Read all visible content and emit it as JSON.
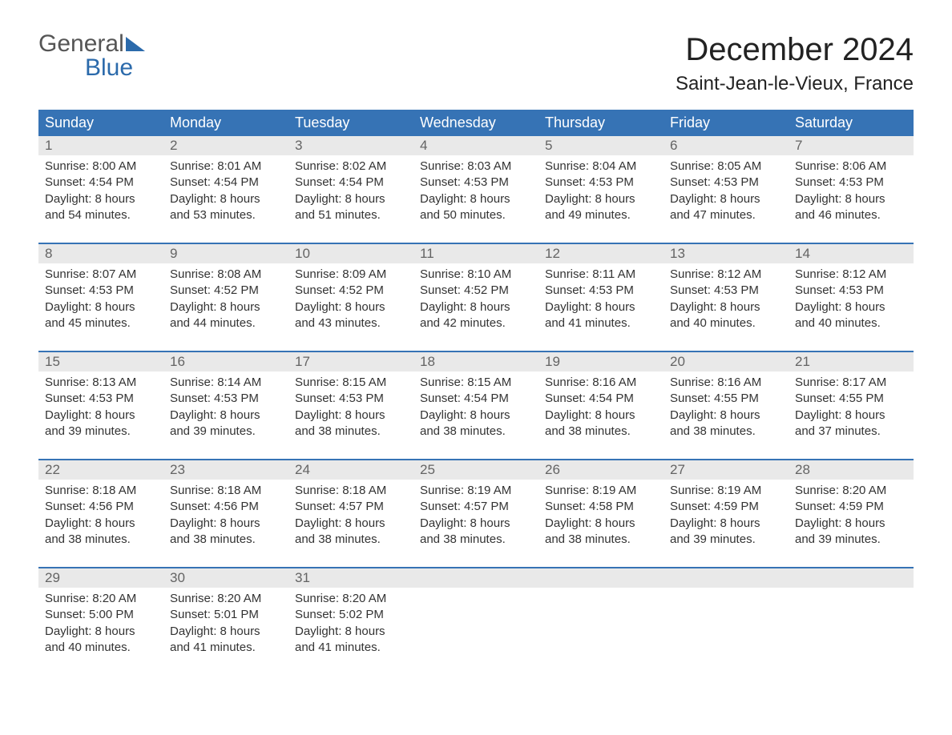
{
  "logo": {
    "text1": "General",
    "text2": "Blue"
  },
  "title": "December 2024",
  "location": "Saint-Jean-le-Vieux, France",
  "colors": {
    "header_bg": "#3673b5",
    "header_text": "#ffffff",
    "daynum_bg": "#e9e9e9",
    "daynum_text": "#646464",
    "body_text": "#333333",
    "week_divider": "#3673b5",
    "logo_gray": "#555555",
    "logo_blue": "#2b6aab"
  },
  "day_headers": [
    "Sunday",
    "Monday",
    "Tuesday",
    "Wednesday",
    "Thursday",
    "Friday",
    "Saturday"
  ],
  "weeks": [
    [
      {
        "d": "1",
        "sr": "8:00 AM",
        "ss": "4:54 PM",
        "dl": "8 hours and 54 minutes."
      },
      {
        "d": "2",
        "sr": "8:01 AM",
        "ss": "4:54 PM",
        "dl": "8 hours and 53 minutes."
      },
      {
        "d": "3",
        "sr": "8:02 AM",
        "ss": "4:54 PM",
        "dl": "8 hours and 51 minutes."
      },
      {
        "d": "4",
        "sr": "8:03 AM",
        "ss": "4:53 PM",
        "dl": "8 hours and 50 minutes."
      },
      {
        "d": "5",
        "sr": "8:04 AM",
        "ss": "4:53 PM",
        "dl": "8 hours and 49 minutes."
      },
      {
        "d": "6",
        "sr": "8:05 AM",
        "ss": "4:53 PM",
        "dl": "8 hours and 47 minutes."
      },
      {
        "d": "7",
        "sr": "8:06 AM",
        "ss": "4:53 PM",
        "dl": "8 hours and 46 minutes."
      }
    ],
    [
      {
        "d": "8",
        "sr": "8:07 AM",
        "ss": "4:53 PM",
        "dl": "8 hours and 45 minutes."
      },
      {
        "d": "9",
        "sr": "8:08 AM",
        "ss": "4:52 PM",
        "dl": "8 hours and 44 minutes."
      },
      {
        "d": "10",
        "sr": "8:09 AM",
        "ss": "4:52 PM",
        "dl": "8 hours and 43 minutes."
      },
      {
        "d": "11",
        "sr": "8:10 AM",
        "ss": "4:52 PM",
        "dl": "8 hours and 42 minutes."
      },
      {
        "d": "12",
        "sr": "8:11 AM",
        "ss": "4:53 PM",
        "dl": "8 hours and 41 minutes."
      },
      {
        "d": "13",
        "sr": "8:12 AM",
        "ss": "4:53 PM",
        "dl": "8 hours and 40 minutes."
      },
      {
        "d": "14",
        "sr": "8:12 AM",
        "ss": "4:53 PM",
        "dl": "8 hours and 40 minutes."
      }
    ],
    [
      {
        "d": "15",
        "sr": "8:13 AM",
        "ss": "4:53 PM",
        "dl": "8 hours and 39 minutes."
      },
      {
        "d": "16",
        "sr": "8:14 AM",
        "ss": "4:53 PM",
        "dl": "8 hours and 39 minutes."
      },
      {
        "d": "17",
        "sr": "8:15 AM",
        "ss": "4:53 PM",
        "dl": "8 hours and 38 minutes."
      },
      {
        "d": "18",
        "sr": "8:15 AM",
        "ss": "4:54 PM",
        "dl": "8 hours and 38 minutes."
      },
      {
        "d": "19",
        "sr": "8:16 AM",
        "ss": "4:54 PM",
        "dl": "8 hours and 38 minutes."
      },
      {
        "d": "20",
        "sr": "8:16 AM",
        "ss": "4:55 PM",
        "dl": "8 hours and 38 minutes."
      },
      {
        "d": "21",
        "sr": "8:17 AM",
        "ss": "4:55 PM",
        "dl": "8 hours and 37 minutes."
      }
    ],
    [
      {
        "d": "22",
        "sr": "8:18 AM",
        "ss": "4:56 PM",
        "dl": "8 hours and 38 minutes."
      },
      {
        "d": "23",
        "sr": "8:18 AM",
        "ss": "4:56 PM",
        "dl": "8 hours and 38 minutes."
      },
      {
        "d": "24",
        "sr": "8:18 AM",
        "ss": "4:57 PM",
        "dl": "8 hours and 38 minutes."
      },
      {
        "d": "25",
        "sr": "8:19 AM",
        "ss": "4:57 PM",
        "dl": "8 hours and 38 minutes."
      },
      {
        "d": "26",
        "sr": "8:19 AM",
        "ss": "4:58 PM",
        "dl": "8 hours and 38 minutes."
      },
      {
        "d": "27",
        "sr": "8:19 AM",
        "ss": "4:59 PM",
        "dl": "8 hours and 39 minutes."
      },
      {
        "d": "28",
        "sr": "8:20 AM",
        "ss": "4:59 PM",
        "dl": "8 hours and 39 minutes."
      }
    ],
    [
      {
        "d": "29",
        "sr": "8:20 AM",
        "ss": "5:00 PM",
        "dl": "8 hours and 40 minutes."
      },
      {
        "d": "30",
        "sr": "8:20 AM",
        "ss": "5:01 PM",
        "dl": "8 hours and 41 minutes."
      },
      {
        "d": "31",
        "sr": "8:20 AM",
        "ss": "5:02 PM",
        "dl": "8 hours and 41 minutes."
      },
      null,
      null,
      null,
      null
    ]
  ],
  "labels": {
    "sunrise": "Sunrise: ",
    "sunset": "Sunset: ",
    "daylight": "Daylight: "
  }
}
